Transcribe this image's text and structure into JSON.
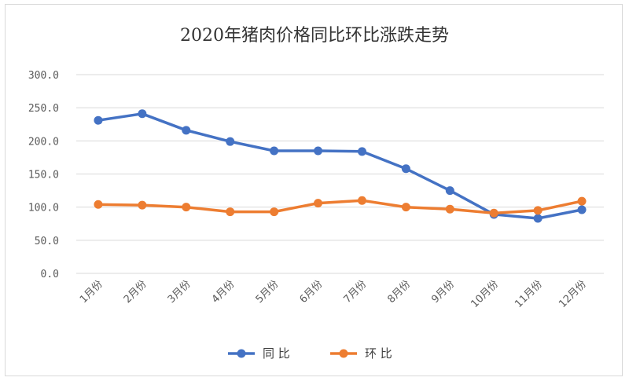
{
  "chart_data": {
    "type": "line",
    "title": "2020年猪肉价格同比环比涨跌走势",
    "categories": [
      "1月份",
      "2月份",
      "3月份",
      "4月份",
      "5月份",
      "6月份",
      "7月份",
      "8月份",
      "9月份",
      "10月份",
      "11月份",
      "12月份"
    ],
    "yticks": [
      "0.0",
      "50.0",
      "100.0",
      "150.0",
      "200.0",
      "250.0",
      "300.0"
    ],
    "ylim": [
      0,
      300
    ],
    "grid": true,
    "legend_position": "bottom",
    "series": [
      {
        "name": "同 比",
        "color": "#4472c4",
        "values": [
          231,
          241,
          216,
          199,
          185,
          185,
          184,
          158,
          125,
          89,
          83,
          96
        ]
      },
      {
        "name": "环 比",
        "color": "#ed7d31",
        "values": [
          104,
          103,
          100,
          93,
          93,
          106,
          110,
          100,
          97,
          91,
          95,
          109
        ]
      }
    ]
  }
}
